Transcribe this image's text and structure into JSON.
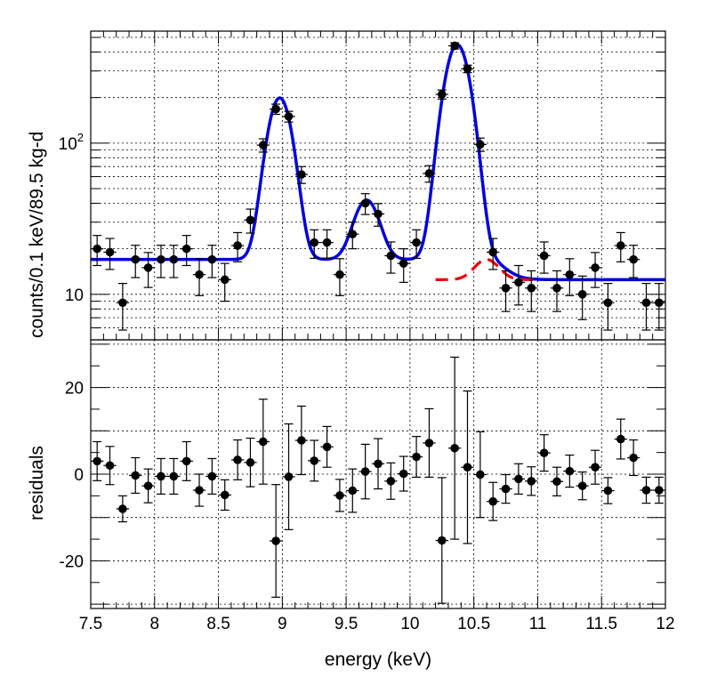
{
  "chart_data": [
    {
      "type": "scatter",
      "panel": "spectrum",
      "ylabel": "counts/0.1 keV/89.5 kg-d",
      "yscale": "log",
      "xlim": [
        7.5,
        12
      ],
      "ylim": [
        5,
        550
      ],
      "grid": true,
      "ytick_labels": [
        "10",
        "10"
      ],
      "ytick_exponent": [
        "",
        "2"
      ],
      "series": [
        {
          "kind": "data-points",
          "x": [
            7.55,
            7.65,
            7.75,
            7.85,
            7.95,
            8.05,
            8.15,
            8.25,
            8.35,
            8.45,
            8.55,
            8.65,
            8.75,
            8.85,
            8.95,
            9.05,
            9.15,
            9.25,
            9.35,
            9.45,
            9.55,
            9.65,
            9.75,
            9.85,
            9.95,
            10.05,
            10.15,
            10.25,
            10.35,
            10.45,
            10.55,
            10.65,
            10.75,
            10.85,
            10.95,
            11.05,
            11.15,
            11.25,
            11.35,
            11.45,
            11.55,
            11.65,
            11.75,
            11.85,
            11.95
          ],
          "y": [
            20,
            19,
            8.8,
            17,
            15,
            17,
            17,
            20,
            13.5,
            17,
            12.5,
            21,
            31,
            97,
            168,
            150,
            62,
            22,
            22,
            13.5,
            25,
            40,
            34,
            18,
            16,
            22,
            63,
            210,
            440,
            310,
            98,
            19,
            11,
            12,
            11,
            18,
            11,
            13.5,
            10,
            15,
            8.8,
            21,
            17,
            8.8,
            8.8
          ],
          "yerr": [
            4.5,
            4.4,
            3.0,
            4.1,
            3.9,
            4.1,
            4.1,
            4.5,
            3.7,
            4.1,
            3.5,
            4.6,
            5.6,
            9.8,
            13,
            12.2,
            7.9,
            4.7,
            4.7,
            3.7,
            5.0,
            6.3,
            5.8,
            4.2,
            4.0,
            4.7,
            7.9,
            14.5,
            21,
            17.6,
            9.9,
            4.4,
            3.3,
            3.5,
            3.3,
            4.2,
            3.3,
            3.7,
            3.2,
            3.9,
            3.0,
            4.6,
            4.1,
            3.0,
            3.0
          ]
        },
        {
          "kind": "fit-curve",
          "color": "#0000dd",
          "baseline_low": 17,
          "baseline_high": 12.5,
          "peaks": [
            {
              "center": 8.98,
              "amplitude": 182,
              "sigma": 0.085
            },
            {
              "center": 9.66,
              "amplitude": 25,
              "sigma": 0.09
            },
            {
              "center": 10.37,
              "amplitude": 430,
              "sigma": 0.09
            }
          ]
        },
        {
          "kind": "component-curve",
          "color": "#ee0000",
          "style": "dashed",
          "x_range": [
            10.2,
            11.0
          ],
          "peak": {
            "center": 10.6,
            "amplitude": 4.5,
            "sigma": 0.09
          }
        }
      ]
    },
    {
      "type": "scatter",
      "panel": "residuals",
      "xlabel": "energy (keV)",
      "ylabel": "residuals",
      "xlim": [
        7.5,
        12
      ],
      "ylim": [
        -31,
        31
      ],
      "grid": true,
      "xticks": [
        7.5,
        8,
        8.5,
        9,
        9.5,
        10,
        10.5,
        11,
        11.5,
        12
      ],
      "xtick_labels": [
        "7.5",
        "8",
        "8.5",
        "9",
        "9.5",
        "10",
        "10.5",
        "11",
        "11.5",
        "12"
      ],
      "yticks": [
        20,
        0,
        -20
      ],
      "ytick_labels": [
        "20",
        "0",
        "-20"
      ],
      "series": [
        {
          "kind": "data-points",
          "x": [
            7.55,
            7.65,
            7.75,
            7.85,
            7.95,
            8.05,
            8.15,
            8.25,
            8.35,
            8.45,
            8.55,
            8.65,
            8.75,
            8.85,
            8.95,
            9.05,
            9.15,
            9.25,
            9.35,
            9.45,
            9.55,
            9.65,
            9.75,
            9.85,
            9.95,
            10.05,
            10.15,
            10.25,
            10.35,
            10.45,
            10.55,
            10.65,
            10.75,
            10.85,
            10.95,
            11.05,
            11.15,
            11.25,
            11.35,
            11.45,
            11.55,
            11.65,
            11.75,
            11.85,
            11.95
          ],
          "y": [
            3,
            2,
            -8,
            -0.3,
            -2.7,
            -0.5,
            -0.5,
            3,
            -3.7,
            -0.5,
            -4.8,
            3.3,
            2.7,
            7.5,
            -15.4,
            -0.6,
            7.8,
            3.1,
            6.3,
            -4.9,
            -3.8,
            0.6,
            2.4,
            -1.6,
            0.1,
            4,
            7.2,
            -15.3,
            6,
            1.6,
            -0.1,
            -6.3,
            -3.4,
            -1.1,
            -1.6,
            4.9,
            -1.7,
            0.7,
            -2.7,
            1.6,
            -3.8,
            8.1,
            3.8,
            -3.7,
            -3.7
          ],
          "yerr": [
            4.5,
            4.4,
            3.0,
            4.1,
            3.9,
            4.1,
            4.1,
            4.5,
            3.7,
            4.1,
            3.5,
            4.6,
            5.6,
            9.8,
            13,
            12.2,
            7.9,
            4.7,
            4.7,
            3.7,
            5.0,
            6.3,
            5.8,
            4.2,
            4.0,
            4.7,
            7.9,
            14.5,
            21,
            17.6,
            9.9,
            4.4,
            3.3,
            3.5,
            3.3,
            4.2,
            3.3,
            3.7,
            3.2,
            3.9,
            3.0,
            4.6,
            4.1,
            3.0,
            3.0
          ]
        }
      ]
    }
  ]
}
